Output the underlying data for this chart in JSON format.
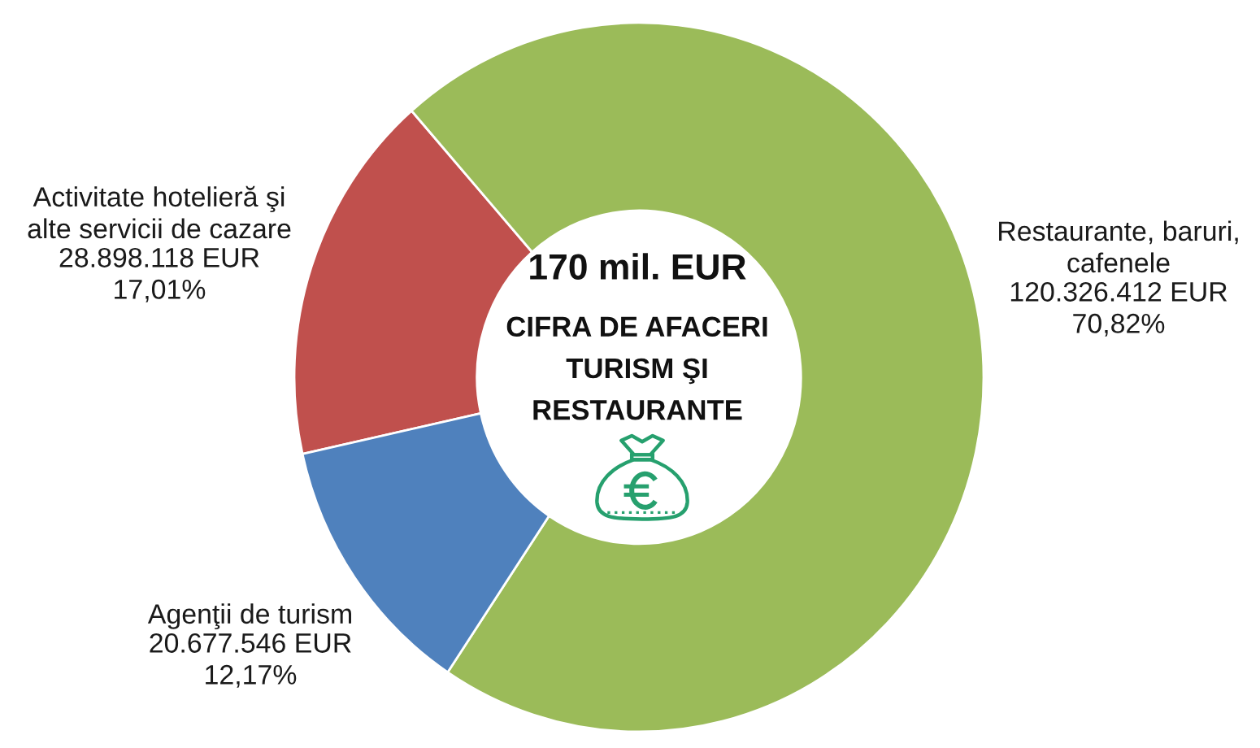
{
  "chart_data": {
    "type": "donut",
    "title": "170 mil. EUR",
    "subtitle": "CIFRA DE AFACERI\nTURISM ŞI\nRESTAURANTE",
    "categories": [
      "Activitate hotelieră şi\nalte servicii de cazare",
      "Restaurante, baruri,\ncafenele",
      "Agenţii de turism"
    ],
    "values": [
      28898118,
      120326412,
      20677546
    ],
    "colors": [
      "#c0504d",
      "#9bbb59",
      "#4f81bd"
    ],
    "value_labels": [
      "28.898.118 EUR\n17,01%",
      "120.326.412 EUR\n70,82%",
      "20.677.546 EUR\n12,17%"
    ]
  }
}
